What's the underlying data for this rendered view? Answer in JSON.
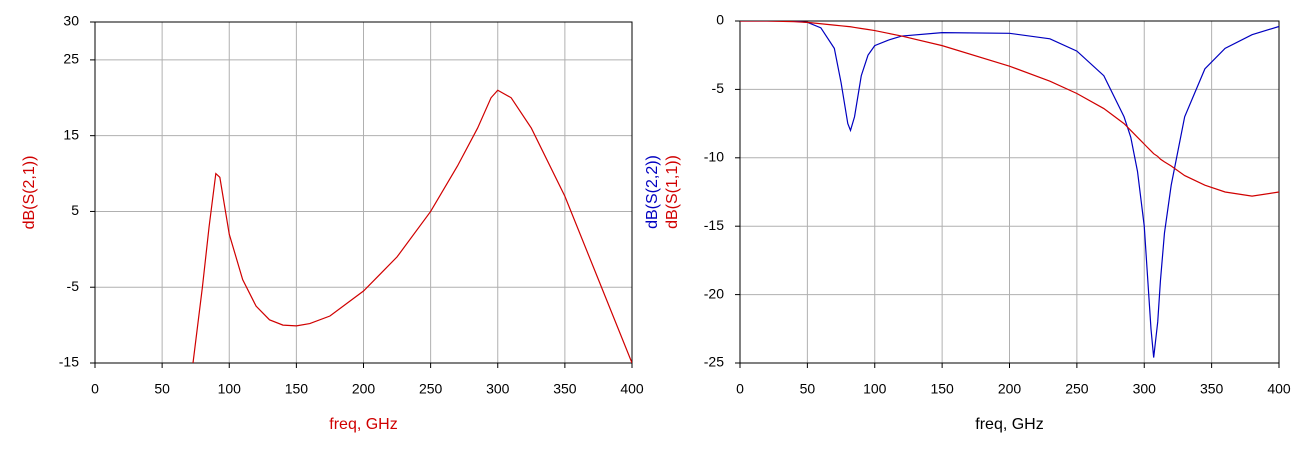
{
  "chart_data": [
    {
      "type": "line",
      "x": [
        73,
        80,
        85,
        90,
        93,
        100,
        110,
        120,
        130,
        140,
        150,
        160,
        175,
        200,
        225,
        250,
        270,
        285,
        295,
        300,
        310,
        325,
        350,
        375,
        400
      ],
      "series": [
        {
          "name": "dB(S(2,1))",
          "color": "#d00000",
          "values": [
            -15,
            -5,
            3,
            10,
            9.5,
            2,
            -4,
            -7.5,
            -9.3,
            -10,
            -10.1,
            -9.8,
            -8.8,
            -5.5,
            -1,
            5,
            11,
            16,
            20,
            21,
            20,
            16,
            7,
            -4,
            -15
          ]
        }
      ],
      "xlabel": "freq, GHz",
      "xlabel_color": "#d00000",
      "xlim": [
        0,
        400
      ],
      "xticks": [
        0,
        50,
        100,
        150,
        200,
        250,
        300,
        350,
        400
      ],
      "ylim": [
        -15,
        30
      ],
      "yticks": [
        -15,
        -5,
        5,
        15,
        25,
        30
      ],
      "grid": true
    },
    {
      "type": "line",
      "x": [
        0,
        20,
        40,
        50,
        60,
        70,
        75,
        80,
        82,
        85,
        90,
        95,
        100,
        110,
        120,
        150,
        200,
        230,
        250,
        270,
        285,
        290,
        295,
        300,
        302,
        305,
        307,
        310,
        312,
        315,
        320,
        330,
        345,
        360,
        380,
        400
      ],
      "series": [
        {
          "name": "dB(S(2,2))",
          "color": "#0000c0",
          "values": [
            0,
            0,
            0,
            -0.1,
            -0.5,
            -2,
            -4.5,
            -7.5,
            -8,
            -7,
            -4,
            -2.5,
            -1.8,
            -1.4,
            -1.1,
            -0.85,
            -0.9,
            -1.3,
            -2.2,
            -4,
            -7,
            -8.5,
            -11,
            -15,
            -18,
            -22.5,
            -24.6,
            -22,
            -19,
            -15.5,
            -12,
            -7,
            -3.5,
            -2,
            -1,
            -0.4
          ]
        },
        {
          "name": "dB(S(1,1))",
          "color": "#d00000",
          "values": [
            0,
            0,
            -0.05,
            -0.1,
            -0.2,
            -0.3,
            -0.35,
            -0.4,
            -0.42,
            -0.47,
            -0.55,
            -0.62,
            -0.7,
            -0.9,
            -1.1,
            -1.8,
            -3.3,
            -4.4,
            -5.3,
            -6.4,
            -7.5,
            -8,
            -8.5,
            -9,
            -9.2,
            -9.5,
            -9.7,
            -9.9,
            -10.1,
            -10.3,
            -10.6,
            -11.3,
            -12,
            -12.5,
            -12.8,
            -12.5
          ]
        }
      ],
      "xlabel": "freq, GHz",
      "xlabel_color": "#000000",
      "xlim": [
        0,
        400
      ],
      "xticks": [
        0,
        50,
        100,
        150,
        200,
        250,
        300,
        350,
        400
      ],
      "ylim": [
        -25,
        0
      ],
      "yticks": [
        -25,
        -20,
        -15,
        -10,
        -5,
        0
      ],
      "grid": true
    }
  ]
}
